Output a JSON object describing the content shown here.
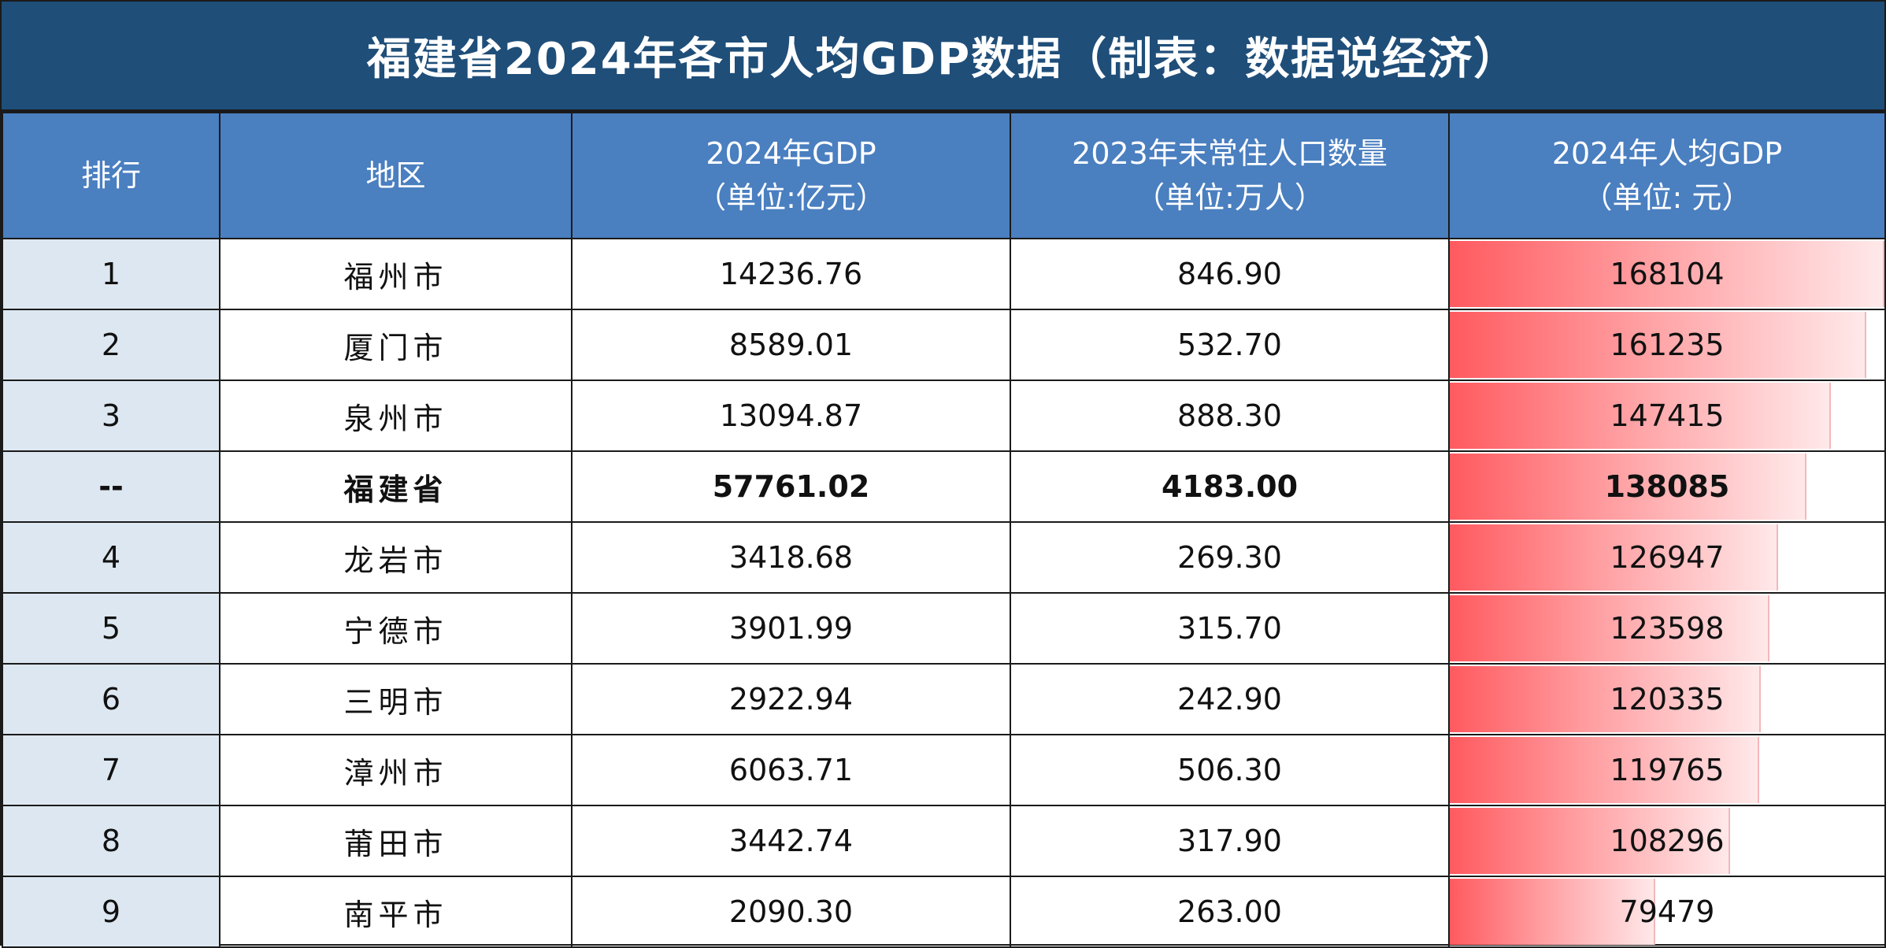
{
  "title": "福建省2024年各市人均GDP数据（制表：数据说经济）",
  "headers": {
    "rank": "排行",
    "region": "地区",
    "gdp_line1": "2024年GDP",
    "gdp_line2": "（单位:亿元）",
    "pop_line1": "2023年末常住人口数量",
    "pop_line2": "（单位:万人）",
    "pc_line1": "2024年人均GDP",
    "pc_line2": "（单位: 元）"
  },
  "bar_colors": {
    "start": "#ff5a5f",
    "end": "#ffe9ea"
  },
  "bar_max": 168104,
  "rows": [
    {
      "rank": "1",
      "region": "福州市",
      "gdp": "14236.76",
      "population": "846.90",
      "gdp_per_capita": "168104",
      "pc_value": 168104,
      "is_total": false
    },
    {
      "rank": "2",
      "region": "厦门市",
      "gdp": "8589.01",
      "population": "532.70",
      "gdp_per_capita": "161235",
      "pc_value": 161235,
      "is_total": false
    },
    {
      "rank": "3",
      "region": "泉州市",
      "gdp": "13094.87",
      "population": "888.30",
      "gdp_per_capita": "147415",
      "pc_value": 147415,
      "is_total": false
    },
    {
      "rank": "--",
      "region": "福建省",
      "gdp": "57761.02",
      "population": "4183.00",
      "gdp_per_capita": "138085",
      "pc_value": 138085,
      "is_total": true
    },
    {
      "rank": "4",
      "region": "龙岩市",
      "gdp": "3418.68",
      "population": "269.30",
      "gdp_per_capita": "126947",
      "pc_value": 126947,
      "is_total": false
    },
    {
      "rank": "5",
      "region": "宁德市",
      "gdp": "3901.99",
      "population": "315.70",
      "gdp_per_capita": "123598",
      "pc_value": 123598,
      "is_total": false
    },
    {
      "rank": "6",
      "region": "三明市",
      "gdp": "2922.94",
      "population": "242.90",
      "gdp_per_capita": "120335",
      "pc_value": 120335,
      "is_total": false
    },
    {
      "rank": "7",
      "region": "漳州市",
      "gdp": "6063.71",
      "population": "506.30",
      "gdp_per_capita": "119765",
      "pc_value": 119765,
      "is_total": false
    },
    {
      "rank": "8",
      "region": "莆田市",
      "gdp": "3442.74",
      "population": "317.90",
      "gdp_per_capita": "108296",
      "pc_value": 108296,
      "is_total": false
    },
    {
      "rank": "9",
      "region": "南平市",
      "gdp": "2090.30",
      "population": "263.00",
      "gdp_per_capita": "79479",
      "pc_value": 79479,
      "is_total": false
    }
  ]
}
